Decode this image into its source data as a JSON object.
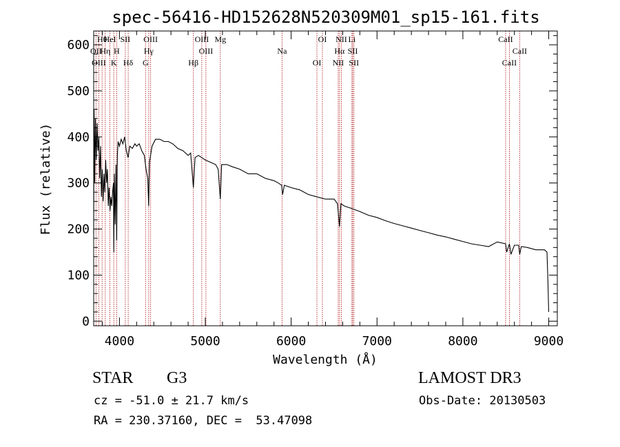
{
  "chart_data": {
    "type": "line",
    "title": "spec-56416-HD152628N520309M01_sp15-161.fits",
    "xlabel": "Wavelength (Å)",
    "ylabel": "Flux (relative)",
    "xlim": [
      3700,
      9100
    ],
    "ylim": [
      -10,
      630
    ],
    "xticks": [
      4000,
      5000,
      6000,
      7000,
      8000,
      9000
    ],
    "yticks": [
      0,
      100,
      200,
      300,
      400,
      500,
      600
    ],
    "xtick_labels": [
      "4000",
      "5000",
      "6000",
      "7000",
      "8000",
      "9000"
    ],
    "ytick_labels": [
      "0",
      "100",
      "200",
      "300",
      "400",
      "500",
      "600"
    ],
    "series": [
      {
        "name": "flux",
        "x": [
          3700,
          3705,
          3712,
          3720,
          3730,
          3740,
          3750,
          3760,
          3770,
          3780,
          3790,
          3800,
          3810,
          3820,
          3830,
          3840,
          3850,
          3860,
          3870,
          3880,
          3890,
          3900,
          3910,
          3920,
          3930,
          3934,
          3940,
          3950,
          3960,
          3968,
          3975,
          3985,
          4000,
          4020,
          4040,
          4060,
          4080,
          4101,
          4120,
          4150,
          4180,
          4200,
          4230,
          4260,
          4290,
          4310,
          4330,
          4340,
          4350,
          4380,
          4420,
          4470,
          4520,
          4570,
          4620,
          4680,
          4740,
          4800,
          4830,
          4861,
          4880,
          4920,
          4960,
          5000,
          5060,
          5120,
          5150,
          5175,
          5190,
          5250,
          5320,
          5400,
          5500,
          5600,
          5700,
          5800,
          5850,
          5890,
          5900,
          5920,
          6000,
          6100,
          6200,
          6300,
          6400,
          6500,
          6540,
          6563,
          6580,
          6620,
          6700,
          6800,
          6900,
          7000,
          7100,
          7200,
          7300,
          7400,
          7500,
          7600,
          7700,
          7800,
          7900,
          8000,
          8100,
          8200,
          8300,
          8400,
          8498,
          8510,
          8542,
          8560,
          8600,
          8650,
          8662,
          8680,
          8750,
          8850,
          8950,
          8980,
          8990,
          9000
        ],
        "y": [
          190,
          460,
          300,
          440,
          350,
          430,
          370,
          400,
          310,
          380,
          270,
          330,
          260,
          320,
          280,
          350,
          300,
          330,
          250,
          290,
          240,
          270,
          250,
          280,
          300,
          150,
          320,
          210,
          340,
          175,
          360,
          390,
          380,
          395,
          385,
          400,
          370,
          355,
          380,
          375,
          385,
          380,
          385,
          370,
          360,
          330,
          310,
          250,
          345,
          380,
          395,
          395,
          390,
          390,
          385,
          375,
          370,
          360,
          365,
          290,
          355,
          360,
          355,
          350,
          345,
          340,
          330,
          265,
          340,
          340,
          335,
          330,
          320,
          320,
          310,
          305,
          300,
          295,
          275,
          295,
          290,
          285,
          275,
          270,
          265,
          265,
          255,
          205,
          255,
          250,
          245,
          238,
          230,
          225,
          218,
          212,
          207,
          202,
          197,
          192,
          187,
          183,
          178,
          173,
          168,
          165,
          162,
          172,
          168,
          150,
          168,
          145,
          165,
          165,
          145,
          162,
          160,
          155,
          155,
          150,
          90,
          20
        ]
      }
    ],
    "lines": [
      {
        "name": "Hθ",
        "x": 3798
      },
      {
        "name": "OII",
        "x": 3727
      },
      {
        "name": "OIII",
        "x": 3760
      },
      {
        "name": "HeI",
        "x": 3889
      },
      {
        "name": "Hη",
        "x": 3835
      },
      {
        "name": "K",
        "x": 3934
      },
      {
        "name": "SII",
        "x": 4068
      },
      {
        "name": "H",
        "x": 3968
      },
      {
        "name": "Hδ",
        "x": 4102
      },
      {
        "name": "OIII",
        "x": 4363
      },
      {
        "name": "Hγ",
        "x": 4341
      },
      {
        "name": "G",
        "x": 4304
      },
      {
        "name": "OIII",
        "x": 4959
      },
      {
        "name": "OIII",
        "x": 5007
      },
      {
        "name": "Hβ",
        "x": 4861
      },
      {
        "name": "Mg",
        "x": 5175
      },
      {
        "name": "Na",
        "x": 5894
      },
      {
        "name": "OI",
        "x": 6300
      },
      {
        "name": "OI",
        "x": 6364
      },
      {
        "name": "Hα",
        "x": 6563
      },
      {
        "name": "NII",
        "x": 6548
      },
      {
        "name": "NII",
        "x": 6584
      },
      {
        "name": "SII",
        "x": 6717
      },
      {
        "name": "SII",
        "x": 6731
      },
      {
        "name": "Li",
        "x": 6708
      },
      {
        "name": "CaII",
        "x": 8662
      },
      {
        "name": "CaII",
        "x": 8542
      },
      {
        "name": "CaII",
        "x": 8498
      }
    ],
    "grid": false,
    "legend": "none"
  },
  "info": {
    "object_class": "STAR",
    "subclass": "G3",
    "survey": "LAMOST DR3",
    "redshift": "cz = -51.0 ± 21.7 km/s",
    "obs_date": "Obs-Date: 20130503",
    "coords": "RA = 230.37160, DEC =  53.47098"
  },
  "colors": {
    "spectrum": "#000000",
    "lines": "#b22222",
    "axes": "#000000"
  }
}
